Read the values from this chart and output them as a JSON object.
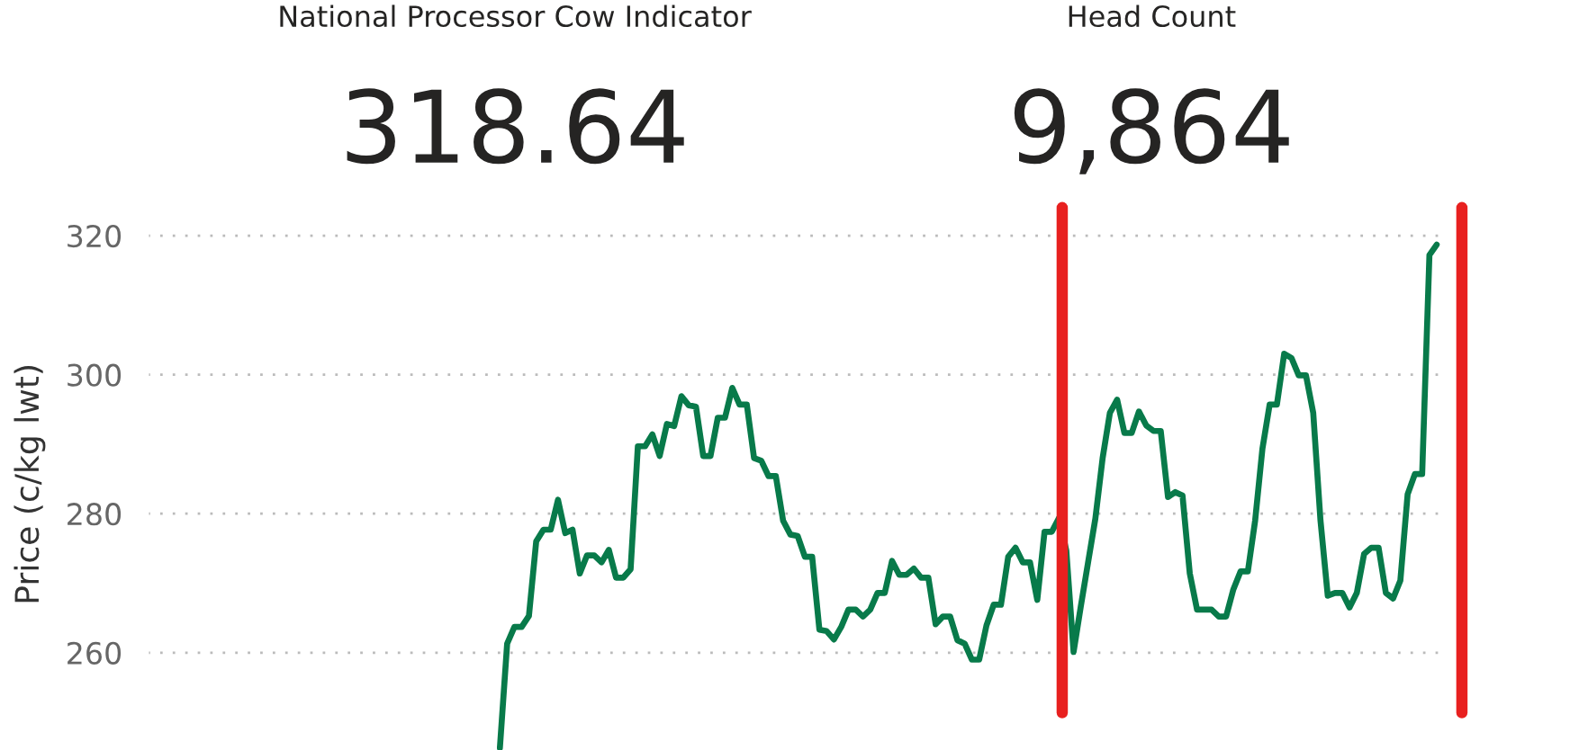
{
  "chart_data": {
    "type": "line",
    "ylabel": "Price (c/kg lwt)",
    "annotations": [
      "National Processor Cow Indicator",
      "318.64",
      "Head Count",
      "9,864"
    ],
    "ylim": [
      246,
      322.5
    ],
    "yticks": [
      260,
      280,
      300,
      320
    ],
    "tick_labels": "y",
    "grid": "y",
    "line_style": "solid",
    "marker": "none",
    "categories": [
      null,
      null,
      null,
      null,
      null,
      null,
      null,
      null,
      null,
      null,
      null,
      null,
      null,
      null,
      null,
      null,
      null,
      null,
      null,
      null,
      null,
      null,
      null,
      null,
      null,
      null,
      null,
      null,
      null,
      null,
      null,
      null,
      null,
      null,
      null,
      null,
      null,
      null,
      null,
      null,
      null,
      null,
      null,
      null,
      null,
      null,
      null,
      null,
      null,
      null,
      null,
      null,
      null,
      null,
      null,
      null,
      null,
      null,
      null,
      null,
      null,
      null,
      null,
      null,
      null,
      null,
      null,
      null,
      null,
      null,
      null,
      null,
      null,
      null,
      null,
      null,
      null,
      null,
      null,
      null,
      null,
      null,
      null,
      null,
      null,
      null,
      null,
      null,
      null,
      null,
      null,
      null,
      null,
      null,
      null,
      null,
      null,
      null,
      null,
      null,
      null,
      null,
      null,
      null,
      null,
      null,
      null,
      null,
      null,
      null,
      null,
      null,
      null,
      null,
      null,
      null,
      null,
      null,
      null,
      null,
      null,
      null,
      null,
      null,
      null,
      null,
      null,
      null,
      null,
      null,
      null,
      null,
      null,
      null,
      null,
      null,
      null,
      null,
      null,
      null,
      null,
      null,
      null,
      null,
      null,
      null,
      null,
      null,
      null,
      null,
      null,
      null,
      null,
      null,
      null,
      null,
      null,
      null,
      null,
      null,
      null,
      null,
      null,
      null,
      null,
      null,
      null,
      null,
      null,
      null,
      null,
      null,
      null,
      null,
      null,
      null,
      null,
      null
    ],
    "series": [
      {
        "color": "#087a4a",
        "values": [
          null,
          null,
          null,
          null,
          null,
          null,
          null,
          null,
          null,
          null,
          null,
          null,
          null,
          null,
          null,
          null,
          null,
          null,
          null,
          null,
          null,
          null,
          null,
          null,
          null,
          null,
          null,
          null,
          null,
          null,
          null,
          null,
          null,
          null,
          null,
          null,
          null,
          null,
          null,
          null,
          null,
          null,
          null,
          null,
          null,
          null,
          null,
          null,
          246.3,
          261.3,
          263.7,
          263.7,
          265.3,
          276,
          277.7,
          277.7,
          282,
          277.2,
          277.7,
          271.4,
          274,
          274,
          273,
          274.8,
          270.8,
          270.8,
          272,
          289.7,
          289.7,
          291.4,
          288.3,
          292.9,
          292.6,
          296.9,
          295.6,
          295.4,
          288.3,
          288.3,
          293.8,
          293.8,
          298.1,
          295.7,
          295.7,
          288,
          287.6,
          285.4,
          285.4,
          279,
          277,
          276.8,
          273.8,
          273.8,
          263.3,
          263.1,
          261.9,
          263.7,
          266.2,
          266.2,
          265.2,
          266.2,
          268.6,
          268.6,
          273.2,
          271.2,
          271.2,
          272.1,
          270.8,
          270.8,
          264.1,
          265.2,
          265.2,
          261.8,
          261.3,
          259,
          259,
          263.9,
          266.9,
          266.9,
          273.8,
          275.1,
          273,
          273,
          267.6,
          277.4,
          277.4,
          279.4,
          274.7,
          260.1,
          266.7,
          273,
          279.3,
          288,
          294.5,
          296.4,
          291.6,
          291.6,
          294.7,
          292.7,
          291.9,
          291.9,
          282.4,
          283.1,
          282.6,
          271.4,
          266.2,
          266.2,
          266.2,
          265.2,
          265.2,
          269.1,
          271.7,
          271.7,
          279,
          289.3,
          295.7,
          295.7,
          303,
          302.4,
          299.9,
          299.9,
          294.5,
          279,
          268.2,
          268.6,
          268.6,
          266.5,
          268.6,
          274.2,
          275.1,
          275.1,
          268.6,
          267.8,
          270.4,
          282.8,
          285.7,
          285.7,
          317.2,
          318.7
        ]
      }
    ]
  }
}
